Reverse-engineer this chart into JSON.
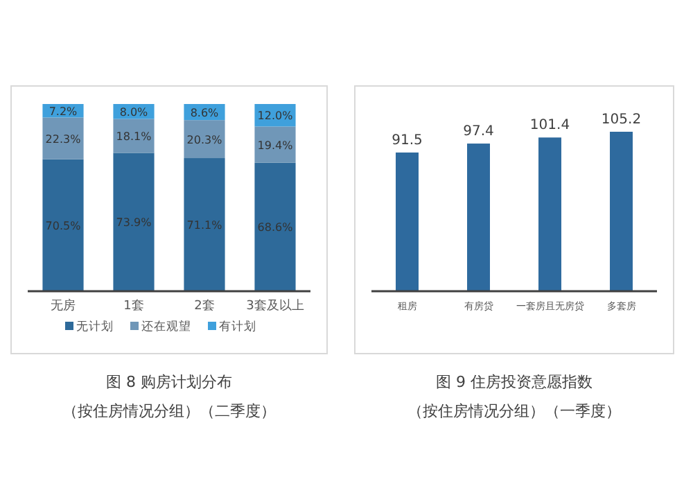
{
  "chart_data": [
    {
      "type": "bar",
      "title": "图 8 购房计划分布",
      "subtitle": "（按住房情况分组）（二季度）",
      "stacked": true,
      "categories": [
        "无房",
        "1套",
        "2套",
        "3套及以上"
      ],
      "legend": "bottom",
      "series": [
        {
          "name": "无计划",
          "color": "#2e6a9a",
          "values": [
            70.5,
            73.9,
            71.1,
            68.6
          ],
          "value_labels": [
            "70.5%",
            "73.9%",
            "71.1%",
            "68.6%"
          ]
        },
        {
          "name": "还在观望",
          "color": "#7097b8",
          "values": [
            22.3,
            18.1,
            20.3,
            19.4
          ],
          "value_labels": [
            "22.3%",
            "18.1%",
            "20.3%",
            "19.4%"
          ]
        },
        {
          "name": "有计划",
          "color": "#3fa0dc",
          "values": [
            7.2,
            8.0,
            8.6,
            12.0
          ],
          "value_labels": [
            "7.2%",
            "8.0%",
            "8.6%",
            "12.0%"
          ]
        }
      ]
    },
    {
      "type": "bar",
      "title": "图 9 住房投资意愿指数",
      "subtitle": "（按住房情况分组）（一季度）",
      "categories": [
        "租房",
        "有房贷",
        "一套房且无房贷",
        "多套房"
      ],
      "values": [
        91.5,
        97.4,
        101.4,
        105.2
      ],
      "color": "#2e6a9e",
      "data_labels": true
    }
  ]
}
